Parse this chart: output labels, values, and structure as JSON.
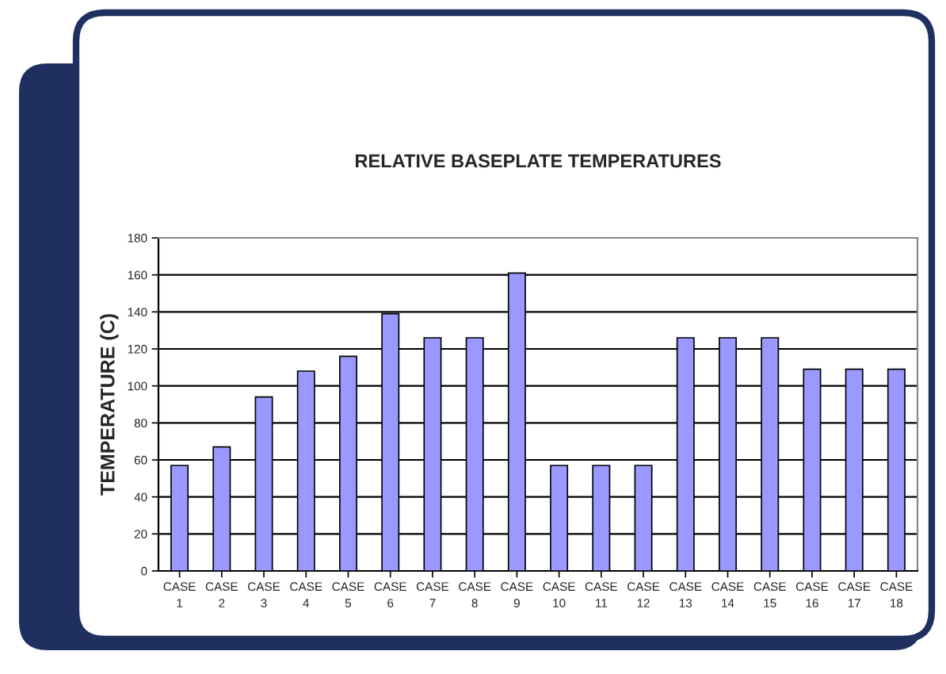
{
  "chart_data": {
    "type": "bar",
    "title": "RELATIVE BASEPLATE TEMPERATURES",
    "ylabel": "TEMPERATURE (C)",
    "categories": [
      "CASE\n1",
      "CASE\n2",
      "CASE\n3",
      "CASE\n4",
      "CASE\n5",
      "CASE\n6",
      "CASE\n7",
      "CASE\n8",
      "CASE\n9",
      "CASE\n10",
      "CASE\n11",
      "CASE\n12",
      "CASE\n13",
      "CASE\n14",
      "CASE\n15",
      "CASE\n16",
      "CASE\n17",
      "CASE\n18"
    ],
    "values": [
      57,
      67,
      94,
      108,
      116,
      139,
      126,
      126,
      161,
      57,
      57,
      57,
      126,
      126,
      126,
      109,
      109,
      109
    ],
    "color": "#9999ff",
    "ylim": [
      0,
      180
    ],
    "yticks": [
      0,
      20,
      40,
      60,
      80,
      100,
      120,
      140,
      160,
      180
    ],
    "grid": "y",
    "legend": false
  }
}
